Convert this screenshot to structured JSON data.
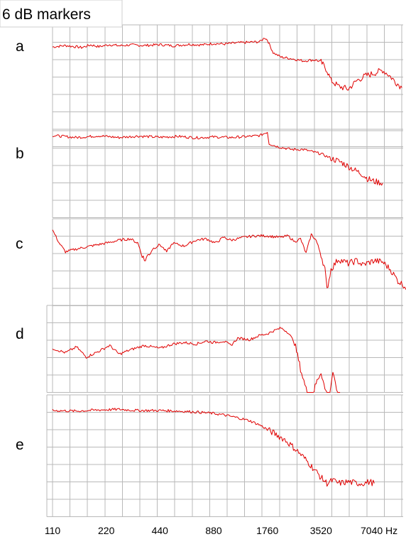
{
  "chart_data": {
    "type": "line",
    "title": "6 dB markers",
    "xlabel": "",
    "ylabel": "",
    "x_scale": "log2",
    "x_ticks": [
      110,
      220,
      440,
      880,
      1760,
      3520,
      7040
    ],
    "x_tick_labels": [
      "110",
      "220",
      "440",
      "880",
      "1760",
      "3520",
      "7040 Hz"
    ],
    "xlim": [
      110,
      11000
    ],
    "y_unit_db_per_gridline": 6,
    "grid": true,
    "line_color": "#e00000",
    "grid_color": "#b9b9b9",
    "panels": [
      {
        "label": "a",
        "series": [
          {
            "x": [
              110,
              130,
              160,
              180,
              200,
              230,
              260,
              300,
              360,
              440,
              520,
              640,
              760,
              880,
              1000,
              1200,
              1400,
              1600,
              1700,
              1760,
              1900,
              2100,
              2400,
              2800,
              3100,
              3300,
              3520,
              3800,
              4000,
              4400,
              5000,
              5600,
              6200,
              7000,
              7800,
              8400,
              9200,
              10000
            ],
            "y": [
              -1.0,
              -0.5,
              -1.2,
              -0.3,
              -0.9,
              -0.2,
              -0.6,
              -0.3,
              -0.5,
              -0.2,
              -0.6,
              -0.1,
              -0.3,
              0.2,
              0.0,
              0.4,
              0.6,
              0.8,
              2.2,
              1.4,
              -3.0,
              -4.5,
              -5.0,
              -5.8,
              -5.5,
              -5.5,
              -6.2,
              -9.0,
              -12.5,
              -14.5,
              -15.5,
              -12.5,
              -11.0,
              -10.0,
              -9.0,
              -10.5,
              -13.0,
              -15.0
            ]
          }
        ]
      },
      {
        "label": "b",
        "series": [
          {
            "x": [
              110,
              150,
              200,
              260,
              330,
              440,
              560,
              700,
              880,
              1100,
              1400,
              1600,
              1760,
              1800,
              2000,
              2400,
              2800,
              3520,
              4000,
              4600,
              5400,
              6000,
              6400,
              7000,
              7800
            ],
            "y": [
              0.3,
              -0.4,
              0.2,
              -0.4,
              0.1,
              -0.3,
              0.0,
              -0.5,
              -0.2,
              -0.4,
              0.0,
              0.3,
              1.5,
              -2.5,
              -3.5,
              -4.5,
              -4.5,
              -6.0,
              -7.5,
              -9.0,
              -11.5,
              -13.0,
              -14.5,
              -15.5,
              -16.0
            ]
          }
        ]
      },
      {
        "label": "c",
        "series": [
          {
            "x": [
              110,
              120,
              130,
              150,
              180,
              220,
              260,
              300,
              330,
              360,
              400,
              440,
              480,
              520,
              600,
              700,
              800,
              900,
              1000,
              1100,
              1300,
              1500,
              1760,
              1900,
              2100,
              2300,
              2500,
              2700,
              2900,
              3100,
              3300,
              3520,
              3700,
              3800,
              4000,
              4400,
              5000,
              5600,
              6000,
              7000,
              7800,
              8600,
              9500,
              10500,
              11000
            ],
            "y": [
              1.5,
              -3.0,
              -6.0,
              -5.0,
              -4.0,
              -3.0,
              -2.0,
              -1.5,
              -3.0,
              -9.0,
              -5.0,
              -3.5,
              -6.0,
              -3.0,
              -4.0,
              -2.0,
              -1.5,
              -3.0,
              -1.0,
              -2.0,
              -1.0,
              -0.5,
              -0.5,
              -0.8,
              -1.0,
              -0.5,
              -2.5,
              -1.5,
              -6.5,
              0.0,
              -2.0,
              -7.0,
              -12.0,
              -19.0,
              -12.0,
              -8.5,
              -10.0,
              -9.0,
              -10.5,
              -9.0,
              -9.5,
              -12.0,
              -16.0,
              -18.0,
              -22.0
            ]
          }
        ]
      },
      {
        "label": "d",
        "series": [
          {
            "x": [
              110,
              130,
              150,
              170,
              200,
              230,
              260,
              300,
              360,
              440,
              520,
              600,
              700,
              800,
              880,
              1000,
              1100,
              1200,
              1400,
              1600,
              1760,
              1900,
              2100,
              2300,
              2500,
              2700,
              2900,
              3100,
              3300,
              3520,
              3700,
              3900,
              4100,
              4300,
              4500
            ],
            "y": [
              -5.0,
              -6.5,
              -4.5,
              -8.0,
              -6.0,
              -4.0,
              -7.0,
              -5.5,
              -4.0,
              -5.0,
              -3.5,
              -3.0,
              -3.5,
              -2.5,
              -3.0,
              -2.5,
              -4.0,
              -1.5,
              -2.0,
              -0.5,
              0.0,
              1.0,
              2.0,
              0.5,
              -3.0,
              -12.0,
              -19.0,
              -23.0,
              -17.0,
              -13.0,
              -19.0,
              -22.0,
              -13.0,
              -20.0,
              -25.0
            ]
          }
        ]
      },
      {
        "label": "e",
        "series": [
          {
            "x": [
              110,
              150,
              200,
              260,
              330,
              440,
              560,
              700,
              880,
              1000,
              1200,
              1400,
              1600,
              1760,
              2000,
              2200,
              2400,
              2600,
              2800,
              3000,
              3200,
              3520,
              3800,
              4100,
              4400,
              5000,
              5600,
              6000,
              6600,
              7000
            ],
            "y": [
              0.0,
              -0.2,
              0.2,
              0.4,
              0.0,
              0.0,
              -0.2,
              -0.5,
              -1.0,
              -1.5,
              -2.5,
              -3.5,
              -5.0,
              -6.5,
              -8.5,
              -10.0,
              -12.0,
              -14.0,
              -16.0,
              -18.0,
              -20.0,
              -23.0,
              -25.0,
              -24.0,
              -25.0,
              -24.5,
              -25.0,
              -25.0,
              -24.5,
              -25.0
            ]
          }
        ]
      }
    ]
  }
}
